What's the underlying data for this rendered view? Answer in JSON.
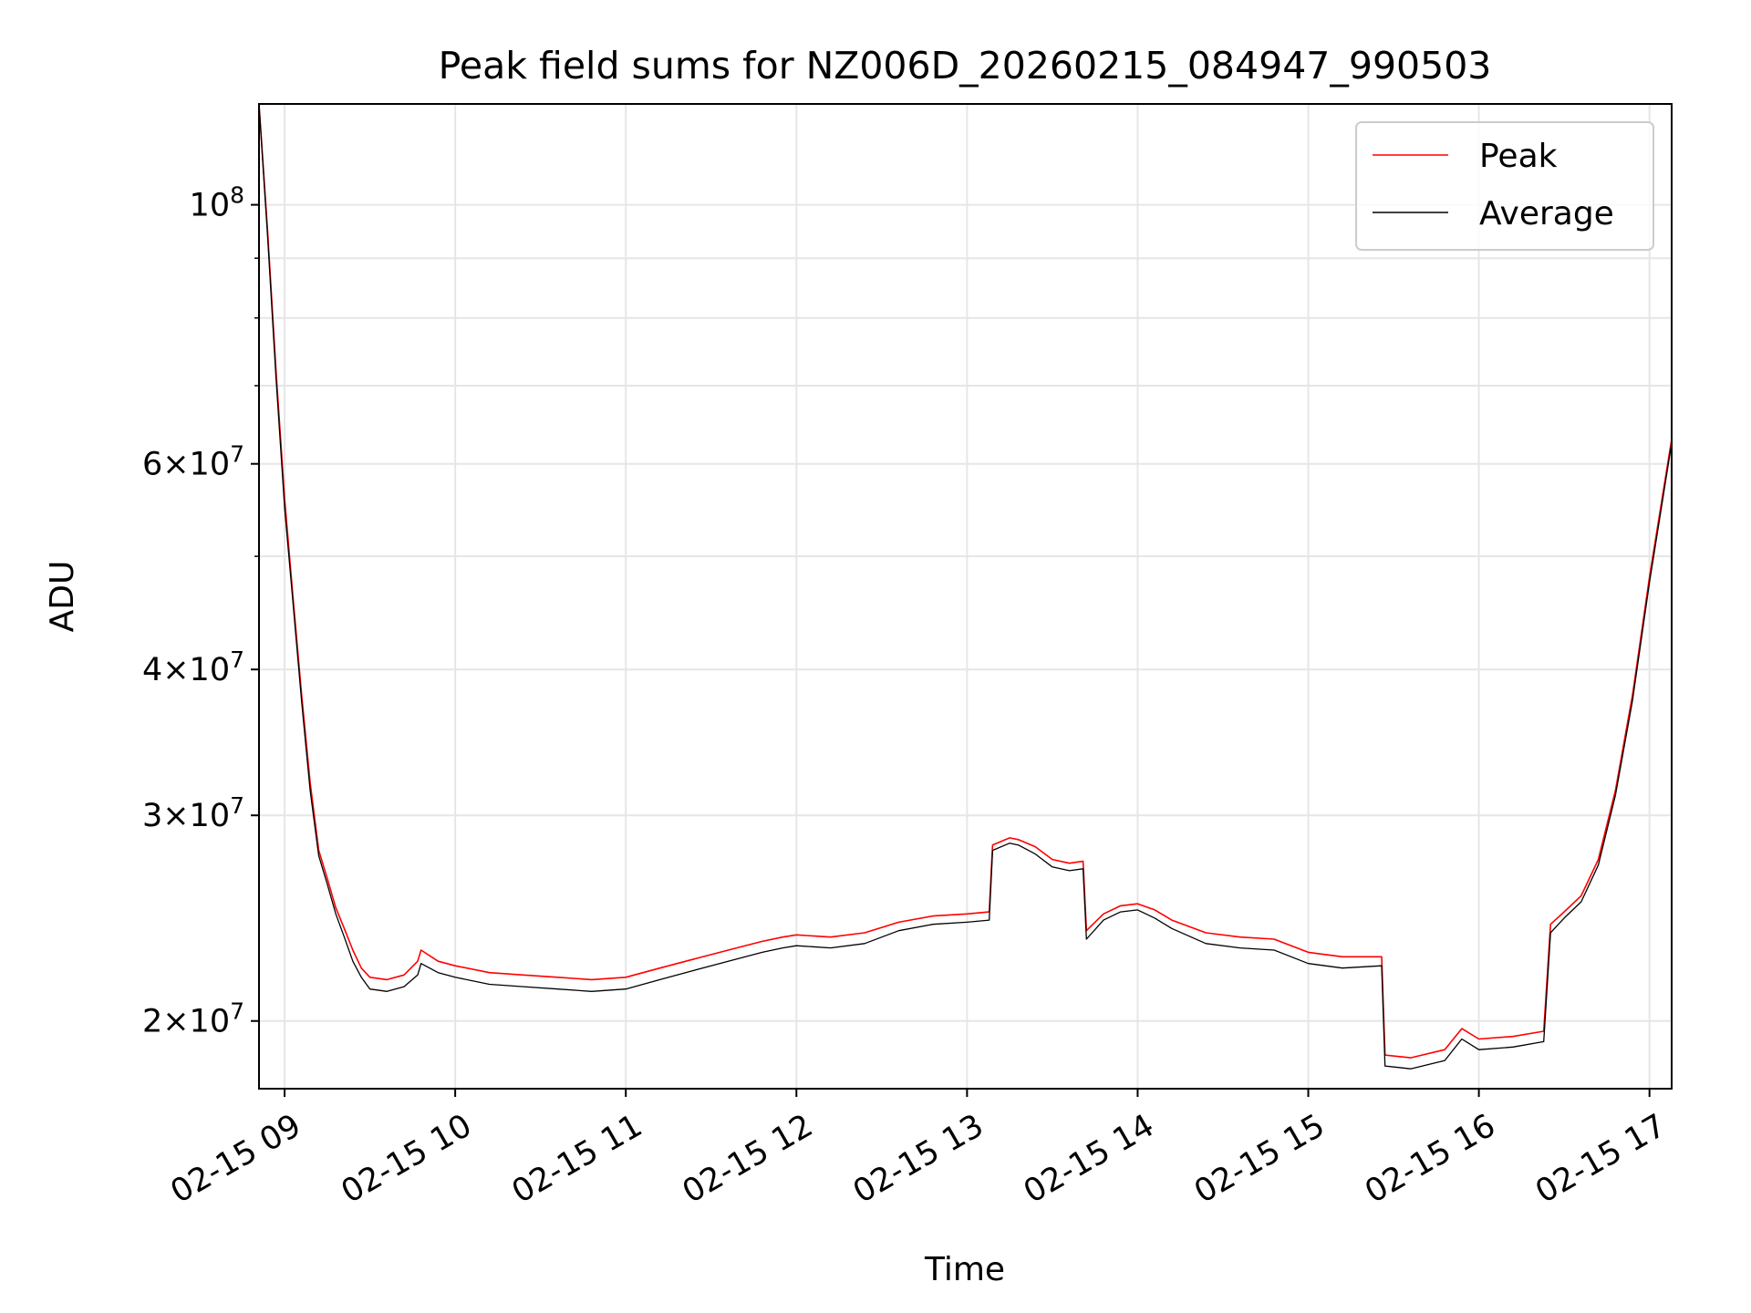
{
  "chart_data": {
    "type": "line",
    "title": "Peak field sums for NZ006D_20260215_084947_990503",
    "xlabel": "Time",
    "ylabel": "ADU",
    "yscale": "log",
    "ylim": [
      17500000,
      122000000
    ],
    "xlim_hours": [
      8.85,
      17.13
    ],
    "grid": true,
    "legend_position": "upper right",
    "x_ticks": [
      {
        "value": 9,
        "label": "02-15 09"
      },
      {
        "value": 10,
        "label": "02-15 10"
      },
      {
        "value": 11,
        "label": "02-15 11"
      },
      {
        "value": 12,
        "label": "02-15 12"
      },
      {
        "value": 13,
        "label": "02-15 13"
      },
      {
        "value": 14,
        "label": "02-15 14"
      },
      {
        "value": 15,
        "label": "02-15 15"
      },
      {
        "value": 16,
        "label": "02-15 16"
      },
      {
        "value": 17,
        "label": "02-15 17"
      }
    ],
    "y_ticks": [
      {
        "value": 20000000,
        "label_mantissa": "2",
        "label_base": "10",
        "label_exp": "7"
      },
      {
        "value": 30000000,
        "label_mantissa": "3",
        "label_base": "10",
        "label_exp": "7"
      },
      {
        "value": 40000000,
        "label_mantissa": "4",
        "label_base": "10",
        "label_exp": "7"
      },
      {
        "value": 60000000,
        "label_mantissa": "6",
        "label_base": "10",
        "label_exp": "7"
      },
      {
        "value": 100000000,
        "label_mantissa": "",
        "label_base": "10",
        "label_exp": "8"
      }
    ],
    "y_minor_ticks": [
      50000000,
      70000000,
      80000000,
      90000000
    ],
    "series": [
      {
        "name": "Peak",
        "color": "#ff0000",
        "x_hours": [
          8.85,
          8.9,
          8.95,
          9.0,
          9.05,
          9.1,
          9.15,
          9.2,
          9.25,
          9.3,
          9.35,
          9.4,
          9.45,
          9.5,
          9.6,
          9.7,
          9.78,
          9.8,
          9.9,
          10.0,
          10.2,
          10.4,
          10.6,
          10.8,
          11.0,
          11.2,
          11.4,
          11.6,
          11.8,
          11.92,
          12.0,
          12.2,
          12.4,
          12.6,
          12.8,
          13.0,
          13.13,
          13.15,
          13.25,
          13.3,
          13.4,
          13.5,
          13.6,
          13.68,
          13.7,
          13.8,
          13.9,
          14.0,
          14.1,
          14.2,
          14.4,
          14.6,
          14.8,
          15.0,
          15.2,
          15.43,
          15.45,
          15.6,
          15.8,
          15.9,
          16.0,
          16.2,
          16.38,
          16.42,
          16.5,
          16.6,
          16.7,
          16.8,
          16.9,
          17.0,
          17.13
        ],
        "values": [
          122000000,
          95000000,
          72000000,
          56000000,
          46000000,
          38000000,
          32000000,
          28000000,
          26500000,
          25000000,
          24000000,
          23000000,
          22200000,
          21800000,
          21700000,
          21900000,
          22500000,
          23000000,
          22500000,
          22300000,
          22000000,
          21900000,
          21800000,
          21700000,
          21800000,
          22200000,
          22600000,
          23000000,
          23400000,
          23600000,
          23700000,
          23600000,
          23800000,
          24300000,
          24600000,
          24700000,
          24800000,
          28300000,
          28700000,
          28600000,
          28200000,
          27500000,
          27300000,
          27400000,
          23900000,
          24700000,
          25100000,
          25200000,
          24900000,
          24400000,
          23800000,
          23600000,
          23500000,
          22900000,
          22700000,
          22700000,
          18700000,
          18600000,
          18900000,
          19700000,
          19300000,
          19400000,
          19600000,
          24200000,
          24800000,
          25600000,
          27500000,
          31500000,
          38000000,
          48000000,
          63000000
        ]
      },
      {
        "name": "Average",
        "color": "#000000",
        "x_hours": [
          8.85,
          8.9,
          8.95,
          9.0,
          9.05,
          9.1,
          9.15,
          9.2,
          9.25,
          9.3,
          9.35,
          9.4,
          9.45,
          9.5,
          9.6,
          9.7,
          9.78,
          9.8,
          9.9,
          10.0,
          10.2,
          10.4,
          10.6,
          10.8,
          11.0,
          11.2,
          11.4,
          11.6,
          11.8,
          11.92,
          12.0,
          12.2,
          12.4,
          12.6,
          12.8,
          13.0,
          13.13,
          13.15,
          13.25,
          13.3,
          13.4,
          13.5,
          13.6,
          13.68,
          13.7,
          13.8,
          13.9,
          14.0,
          14.1,
          14.2,
          14.4,
          14.6,
          14.8,
          15.0,
          15.2,
          15.43,
          15.45,
          15.6,
          15.8,
          15.9,
          16.0,
          16.2,
          16.38,
          16.42,
          16.5,
          16.6,
          16.7,
          16.8,
          16.9,
          17.0,
          17.13
        ],
        "values": [
          122000000,
          94000000,
          71000000,
          55000000,
          45500000,
          37500000,
          31500000,
          27700000,
          26200000,
          24700000,
          23600000,
          22500000,
          21800000,
          21300000,
          21200000,
          21400000,
          21900000,
          22400000,
          22000000,
          21800000,
          21500000,
          21400000,
          21300000,
          21200000,
          21300000,
          21700000,
          22100000,
          22500000,
          22900000,
          23100000,
          23200000,
          23100000,
          23300000,
          23900000,
          24200000,
          24300000,
          24400000,
          28000000,
          28400000,
          28300000,
          27800000,
          27100000,
          26900000,
          27000000,
          23500000,
          24400000,
          24800000,
          24900000,
          24500000,
          24000000,
          23300000,
          23100000,
          23000000,
          22400000,
          22200000,
          22300000,
          18300000,
          18200000,
          18500000,
          19300000,
          18900000,
          19000000,
          19200000,
          23800000,
          24500000,
          25300000,
          27200000,
          31200000,
          37600000,
          47500000,
          62500000
        ]
      }
    ]
  }
}
